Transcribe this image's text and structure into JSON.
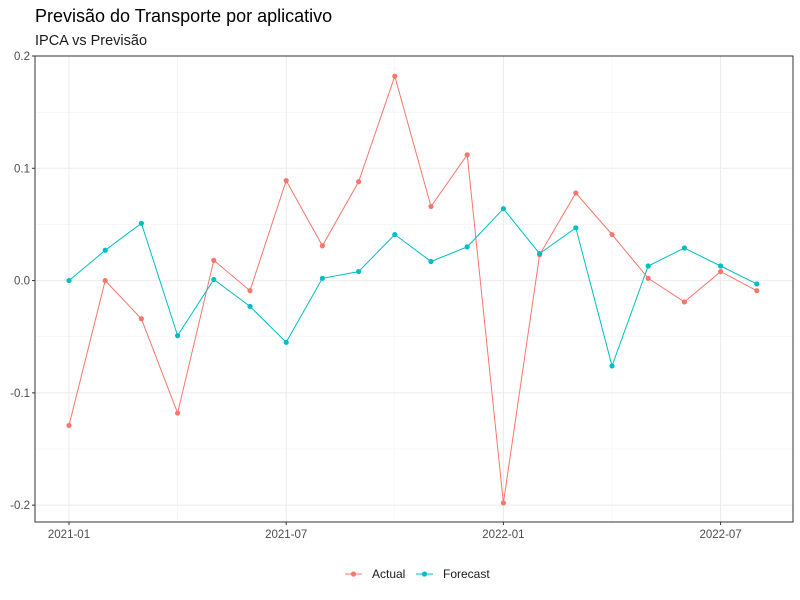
{
  "chart_data": {
    "type": "line",
    "title": "Previsão do Transporte por aplicativo",
    "subtitle": "IPCA vs Previsão",
    "xlabel": "",
    "ylabel": "",
    "x": [
      "2021-01",
      "2021-02",
      "2021-03",
      "2021-04",
      "2021-05",
      "2021-06",
      "2021-07",
      "2021-08",
      "2021-09",
      "2021-10",
      "2021-11",
      "2021-12",
      "2022-01",
      "2022-02",
      "2022-03",
      "2022-04",
      "2022-05",
      "2022-06",
      "2022-07",
      "2022-08"
    ],
    "x_ticks": [
      "2021-01",
      "2021-07",
      "2022-01",
      "2022-07"
    ],
    "y_ticks": [
      -0.2,
      -0.1,
      0.0,
      0.1,
      0.2
    ],
    "y_tick_labels": [
      "-0.2",
      "-0.1",
      "0.0",
      "0.1",
      "0.2"
    ],
    "ylim": [
      -0.215,
      0.2
    ],
    "grid": true,
    "legend_position": "bottom",
    "series": [
      {
        "name": "Actual",
        "color": "#F8766D",
        "values": [
          -0.129,
          0.0,
          -0.034,
          -0.118,
          0.018,
          -0.009,
          0.089,
          0.031,
          0.088,
          0.182,
          0.066,
          0.112,
          -0.198,
          0.023,
          0.078,
          0.041,
          0.002,
          -0.019,
          0.008,
          -0.009
        ]
      },
      {
        "name": "Forecast",
        "color": "#00BFC4",
        "values": [
          0.0,
          0.027,
          0.051,
          -0.049,
          0.001,
          -0.023,
          -0.055,
          0.002,
          0.008,
          0.041,
          0.017,
          0.03,
          0.064,
          0.024,
          0.047,
          -0.076,
          0.013,
          0.029,
          0.013,
          -0.003
        ]
      }
    ]
  }
}
